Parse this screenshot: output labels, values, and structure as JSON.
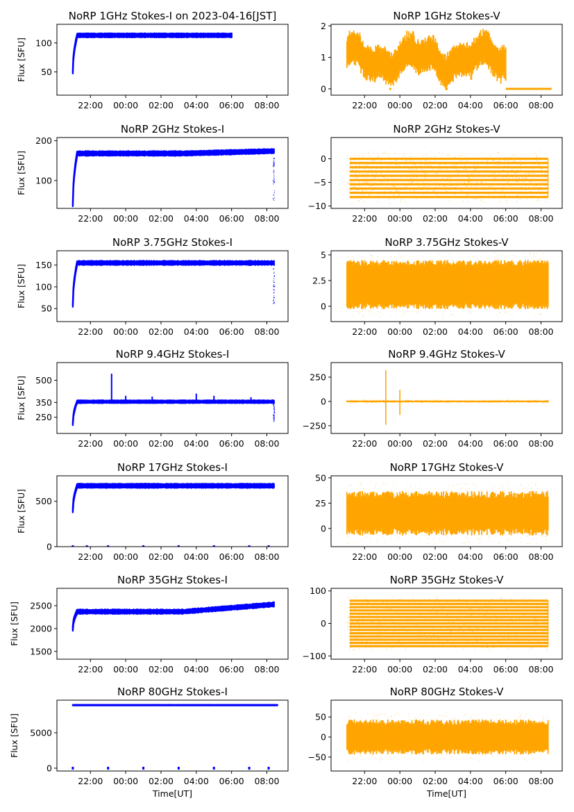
{
  "figure": {
    "xlabel": "Time[UT]",
    "ylabel": "Flux [SFU]",
    "time_ticks": [
      "22:00",
      "00:00",
      "02:00",
      "04:00",
      "06:00",
      "08:00"
    ],
    "colors": {
      "stokes_i": "#0000ff",
      "stokes_v": "#ffa500",
      "axes": "#000000",
      "background": "#ffffff"
    }
  },
  "chart_data": [
    {
      "type": "scatter",
      "title": "NoRP 1GHz Stokes-I on 2023-04-16[JST]",
      "xlabel": "",
      "ylabel": "Flux [SFU]",
      "x_unit": "hours UT from 00:00 on 2023-04-16",
      "xlim": [
        -3.9,
        9.2
      ],
      "ylim": [
        10,
        132
      ],
      "yticks": [
        50,
        100
      ],
      "series": [
        {
          "color": "#0000ff",
          "x_range": [
            -3.0,
            6.0
          ],
          "level": 113,
          "start": 50,
          "band": 3,
          "trend": 0,
          "noise": 1,
          "drops": [],
          "spikes": []
        }
      ]
    },
    {
      "type": "scatter",
      "title": "NoRP 1GHz Stokes-V",
      "xlabel": "",
      "ylabel": "",
      "x_unit": "hours UT from 00:00 on 2023-04-16",
      "xlim": [
        -3.9,
        9.2
      ],
      "ylim": [
        -0.2,
        2.05
      ],
      "yticks": [
        0,
        1,
        2
      ],
      "series": [
        {
          "color": "#ffa500",
          "x_range": [
            -3.0,
            6.0
          ],
          "level": 0.95,
          "band": 0.4,
          "noise": 0.2,
          "after_level": 0,
          "after_end": 8.6
        }
      ]
    },
    {
      "type": "scatter",
      "title": "NoRP 2GHz Stokes-I",
      "xlabel": "",
      "ylabel": "Flux [SFU]",
      "x_unit": "hours UT from 00:00 on 2023-04-16",
      "xlim": [
        -3.9,
        9.2
      ],
      "ylim": [
        30,
        208
      ],
      "yticks": [
        100,
        200
      ],
      "series": [
        {
          "color": "#0000ff",
          "x_range": [
            -3.0,
            8.4
          ],
          "level": 168,
          "start": 40,
          "band": 5,
          "trend": 6,
          "noise": 2,
          "drops": [
            50
          ],
          "spikes": []
        }
      ]
    },
    {
      "type": "scatter",
      "title": "NoRP 2GHz Stokes-V",
      "xlabel": "",
      "ylabel": "",
      "x_unit": "hours UT from 00:00 on 2023-04-16",
      "xlim": [
        -3.9,
        9.2
      ],
      "ylim": [
        -10.5,
        4.5
      ],
      "yticks": [
        -10,
        -5,
        0
      ],
      "series": [
        {
          "color": "#ffa500",
          "x_range": [
            -3.0,
            8.4
          ],
          "bands": [
            0,
            -0.9,
            -1.8,
            -2.7,
            -3.6,
            -4.5,
            -5.4,
            -6.3,
            -7.2,
            -8.1
          ],
          "noise": 0.5
        }
      ]
    },
    {
      "type": "scatter",
      "title": "NoRP 3.75GHz Stokes-I",
      "xlabel": "",
      "ylabel": "Flux [SFU]",
      "x_unit": "hours UT from 00:00 on 2023-04-16",
      "xlim": [
        -3.9,
        9.2
      ],
      "ylim": [
        20,
        183
      ],
      "yticks": [
        50,
        100,
        150
      ],
      "series": [
        {
          "color": "#0000ff",
          "x_range": [
            -3.0,
            8.4
          ],
          "level": 155,
          "start": 58,
          "band": 4,
          "trend": 0,
          "noise": 2,
          "drops": [
            60
          ],
          "spikes": []
        }
      ]
    },
    {
      "type": "scatter",
      "title": "NoRP 3.75GHz Stokes-V",
      "xlabel": "",
      "ylabel": "",
      "x_unit": "hours UT from 00:00 on 2023-04-16",
      "xlim": [
        -3.9,
        9.2
      ],
      "ylim": [
        -1.5,
        5.4
      ],
      "yticks": [
        0.0,
        2.5,
        5.0
      ],
      "series": [
        {
          "color": "#ffa500",
          "x_range": [
            -3.0,
            8.4
          ],
          "level": 2.1,
          "band": 1.8,
          "noise": 0.6
        }
      ]
    },
    {
      "type": "scatter",
      "title": "NoRP 9.4GHz Stokes-I",
      "xlabel": "",
      "ylabel": "Flux [SFU]",
      "x_unit": "hours UT from 00:00 on 2023-04-16",
      "xlim": [
        -3.9,
        9.2
      ],
      "ylim": [
        140,
        620
      ],
      "yticks": [
        250,
        350,
        500
      ],
      "series": [
        {
          "color": "#0000ff",
          "x_range": [
            -3.0,
            8.4
          ],
          "level": 355,
          "start": 205,
          "band": 8,
          "trend": 0,
          "noise": 4,
          "drops": [
            220
          ],
          "spikes": [
            [
              -0.8,
              545
            ],
            [
              0.0,
              395
            ],
            [
              1.5,
              390
            ],
            [
              4.0,
              410
            ],
            [
              5.0,
              395
            ],
            [
              7.1,
              385
            ]
          ]
        }
      ]
    },
    {
      "type": "scatter",
      "title": "NoRP 9.4GHz Stokes-V",
      "xlabel": "",
      "ylabel": "",
      "x_unit": "hours UT from 00:00 on 2023-04-16",
      "xlim": [
        -3.9,
        9.2
      ],
      "ylim": [
        -330,
        400
      ],
      "yticks": [
        -250,
        0,
        250
      ],
      "series": [
        {
          "color": "#ffa500",
          "x_range": [
            -3.0,
            8.4
          ],
          "level": 0,
          "band": 6,
          "noise": 4,
          "spikes": [
            [
              -0.8,
              320
            ],
            [
              -0.8,
              -240
            ],
            [
              0.0,
              120
            ],
            [
              0.0,
              -140
            ]
          ]
        }
      ]
    },
    {
      "type": "scatter",
      "title": "NoRP 17GHz Stokes-I",
      "xlabel": "",
      "ylabel": "Flux [SFU]",
      "x_unit": "hours UT from 00:00 on 2023-04-16",
      "xlim": [
        -3.9,
        9.2
      ],
      "ylim": [
        0,
        780
      ],
      "yticks": [
        0,
        500
      ],
      "series": [
        {
          "color": "#0000ff",
          "x_range": [
            -3.0,
            8.4
          ],
          "level": 670,
          "start": 400,
          "band": 20,
          "trend": 0,
          "noise": 8,
          "drops": [],
          "spikes": [],
          "zero_marks": [
            -3.0,
            -2.2,
            -1.0,
            1.0,
            3.0,
            5.0,
            7.0,
            8.1
          ]
        }
      ]
    },
    {
      "type": "scatter",
      "title": "NoRP 17GHz Stokes-V",
      "xlabel": "",
      "ylabel": "",
      "x_unit": "hours UT from 00:00 on 2023-04-16",
      "xlim": [
        -3.9,
        9.2
      ],
      "ylim": [
        -18,
        52
      ],
      "yticks": [
        0,
        25,
        50
      ],
      "series": [
        {
          "color": "#ffa500",
          "x_range": [
            -3.0,
            8.4
          ],
          "level": 15,
          "band": 15,
          "noise": 7
        }
      ]
    },
    {
      "type": "scatter",
      "title": "NoRP 35GHz Stokes-I",
      "xlabel": "",
      "ylabel": "Flux [SFU]",
      "x_unit": "hours UT from 00:00 on 2023-04-16",
      "xlim": [
        -3.9,
        9.2
      ],
      "ylim": [
        1330,
        2880
      ],
      "yticks": [
        1500,
        2000,
        2500
      ],
      "series": [
        {
          "color": "#0000ff",
          "x_range": [
            -3.0,
            8.4
          ],
          "level": 2370,
          "start": 2000,
          "band": 40,
          "trend": 160,
          "noise": 20,
          "drops": [],
          "spikes": []
        }
      ]
    },
    {
      "type": "scatter",
      "title": "NoRP 35GHz Stokes-V",
      "xlabel": "",
      "ylabel": "",
      "x_unit": "hours UT from 00:00 on 2023-04-16",
      "xlim": [
        -3.9,
        9.2
      ],
      "ylim": [
        -110,
        108
      ],
      "yticks": [
        -100,
        0,
        100
      ],
      "series": [
        {
          "color": "#ffa500",
          "x_range": [
            -3.0,
            8.4
          ],
          "bands": [
            70,
            60,
            50,
            40,
            30,
            20,
            10,
            0,
            -10,
            -20,
            -30,
            -40,
            -50,
            -60,
            -70
          ],
          "noise": 4
        }
      ]
    },
    {
      "type": "scatter",
      "title": "NoRP 80GHz Stokes-I",
      "xlabel": "Time[UT]",
      "ylabel": "Flux [SFU]",
      "x_unit": "hours UT from 00:00 on 2023-04-16",
      "xlim": [
        -3.9,
        9.2
      ],
      "ylim": [
        -400,
        9600
      ],
      "yticks": [
        0,
        5000
      ],
      "series": [
        {
          "color": "#0000ff",
          "x_range": [
            -3.0,
            8.6
          ],
          "level": 8900,
          "start": 8900,
          "band": 40,
          "trend": 0,
          "noise": 15,
          "drops": [],
          "spikes": [],
          "zero_marks": [
            -3.0,
            -1.0,
            1.0,
            3.0,
            5.0,
            7.0,
            8.1
          ]
        }
      ]
    },
    {
      "type": "scatter",
      "title": "NoRP 80GHz Stokes-V",
      "xlabel": "Time[UT]",
      "ylabel": "",
      "x_unit": "hours UT from 00:00 on 2023-04-16",
      "xlim": [
        -3.9,
        9.2
      ],
      "ylim": [
        -85,
        92
      ],
      "yticks": [
        -50,
        0,
        50
      ],
      "series": [
        {
          "color": "#ffa500",
          "x_range": [
            -3.0,
            8.4
          ],
          "level": 0,
          "band": 30,
          "noise": 14
        }
      ]
    }
  ]
}
